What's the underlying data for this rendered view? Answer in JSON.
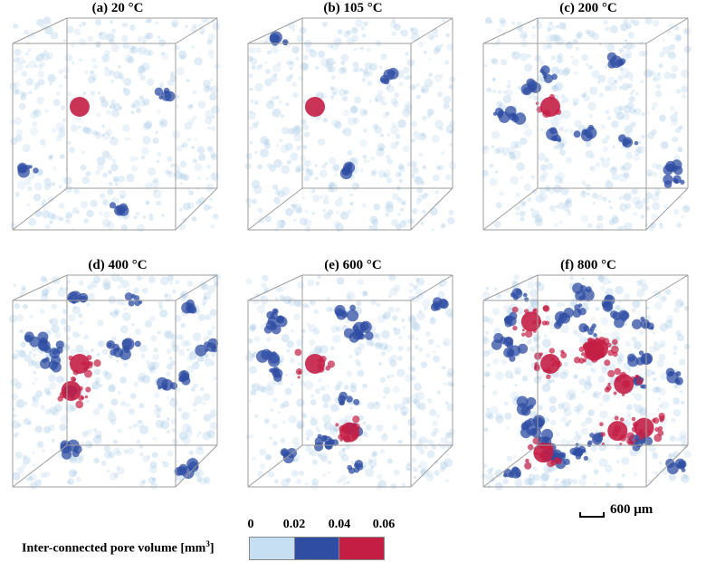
{
  "panels": [
    {
      "label": "(a) 20 °C",
      "level": 0
    },
    {
      "label": "(b) 105 °C",
      "level": 0
    },
    {
      "label": "(c) 200 °C",
      "level": 1
    },
    {
      "label": "(d) 400 °C",
      "level": 2
    },
    {
      "label": "(e) 600 °C",
      "level": 2
    },
    {
      "label": "(f) 800 °C",
      "level": 3
    }
  ],
  "scale_bar": {
    "label": "600 μm"
  },
  "legend": {
    "title": "Inter-connected pore volume [mm",
    "title_sup": "3",
    "title_end": "]",
    "ticks": [
      "0",
      "0.02",
      "0.04",
      "0.06"
    ],
    "colors": [
      "#c6dff2",
      "#2f4da3",
      "#c41e45"
    ]
  },
  "colors": {
    "cube_edge": "#9e9e9e",
    "pore_light": "#a9cbe6",
    "pore_mid": "#2f4da3",
    "pore_high": "#c41e45"
  }
}
